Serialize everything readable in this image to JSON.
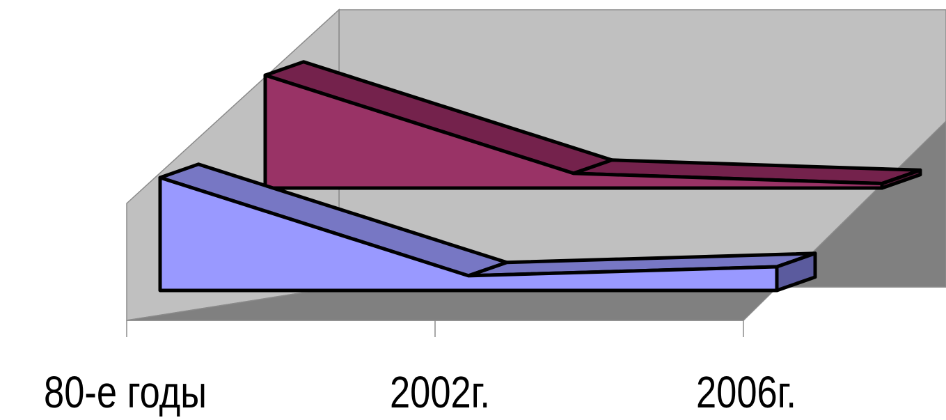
{
  "chart_data": {
    "type": "area",
    "three_d": true,
    "categories": [
      "80-е годы",
      "2002г.",
      "2006г."
    ],
    "series": [
      {
        "values": [
          100,
          13,
          21
        ],
        "color": "#9999ff",
        "top_color": "#7777c4",
        "side_color": "#5b5b9e"
      },
      {
        "values": [
          100,
          13,
          4
        ],
        "color": "#993366",
        "top_color": "#74224c",
        "side_color": "#5a1a3a"
      }
    ],
    "ylim": [
      0,
      100
    ],
    "grid": false,
    "legend": "none",
    "wall_color": "#c0c0c0",
    "floor_color": "#808080"
  }
}
